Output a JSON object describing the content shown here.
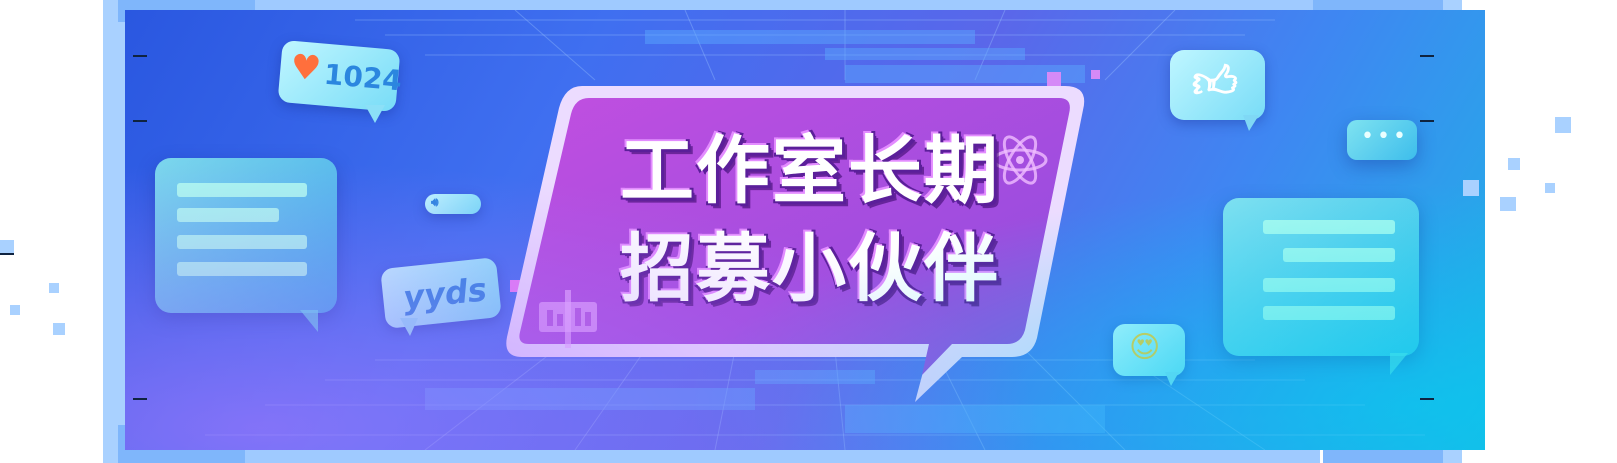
{
  "banner": {
    "headline_line1": "工作室长期",
    "headline_line2": "招募小伙伴",
    "like_count": "1024",
    "slang_tag": "yyds"
  },
  "colors": {
    "bg_blue": "#2a57e0",
    "bubble_purple": "#a850e0",
    "glass_cyan": "#6fe3ea",
    "frame": "#9fcaff"
  },
  "icons": [
    "heart-icon",
    "thumbs-up-icon",
    "ellipsis-icon",
    "speaker-icon",
    "heart-eyes-emoji-icon",
    "atom-icon",
    "building-icon"
  ]
}
